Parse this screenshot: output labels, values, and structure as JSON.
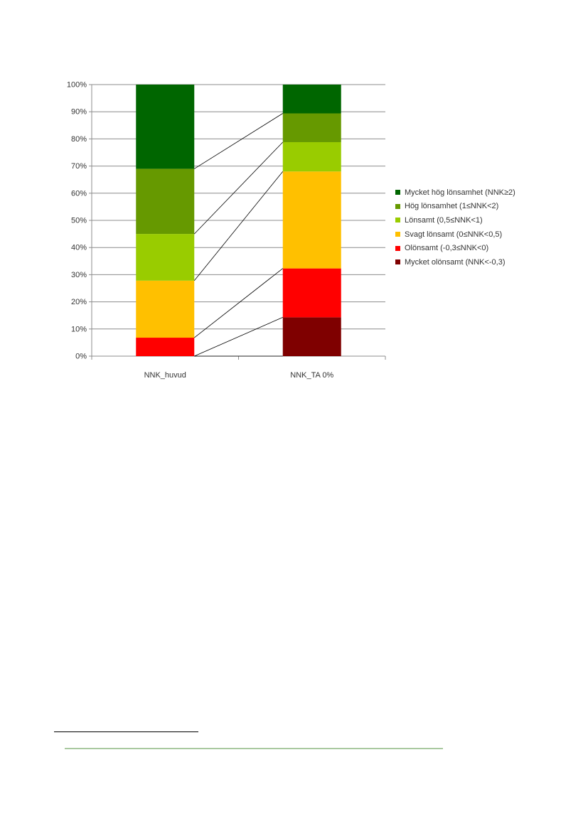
{
  "chart_data": {
    "type": "bar",
    "stacked": true,
    "percent_scale": true,
    "categories": [
      "NNK_huvud",
      "NNK_TA 0%"
    ],
    "y_ticks": [
      "0%",
      "10%",
      "20%",
      "30%",
      "40%",
      "50%",
      "60%",
      "70%",
      "80%",
      "90%",
      "100%"
    ],
    "ylim": [
      0,
      100
    ],
    "grid": true,
    "legend_position": "right",
    "series_connector_lines": true,
    "series": [
      {
        "name": "Mycket olönsamt (NNK<-0,3)",
        "color": "#7f0000",
        "values": [
          0,
          14.3
        ]
      },
      {
        "name": "Olönsamt (-0,3≤NNK<0)",
        "color": "#ff0000",
        "values": [
          6.8,
          18
        ]
      },
      {
        "name": "Svagt lönsamt (0≤NNK<0,5)",
        "color": "#ffc000",
        "values": [
          21,
          35.7
        ]
      },
      {
        "name": "Lönsamt (0,5≤NNK<1)",
        "color": "#99cc00",
        "values": [
          17.2,
          10.8
        ]
      },
      {
        "name": "Hög lönsamhet (1≤NNK<2)",
        "color": "#669900",
        "values": [
          24,
          10.6
        ]
      },
      {
        "name": "Mycket hög lönsamhet (NNK≥2)",
        "color": "#006600",
        "values": [
          31,
          10.6
        ]
      }
    ]
  },
  "legend": {
    "items": [
      {
        "label": "Mycket hög lönsamhet (NNK≥2)",
        "color": "#006600"
      },
      {
        "label": "Hög lönsamhet (1≤NNK<2)",
        "color": "#669900"
      },
      {
        "label": "Lönsamt (0,5≤NNK<1)",
        "color": "#99cc00"
      },
      {
        "label": "Svagt lönsamt (0≤NNK<0,5)",
        "color": "#ffc000"
      },
      {
        "label": "Olönsamt (-0,3≤NNK<0)",
        "color": "#ff0000"
      },
      {
        "label": "Mycket olönsamt (NNK<-0,3)",
        "color": "#7f0000"
      }
    ]
  },
  "colors": {
    "gridline": "#8c8c8c",
    "connector": "#000000",
    "footer_rule": "#a9c9a0"
  }
}
